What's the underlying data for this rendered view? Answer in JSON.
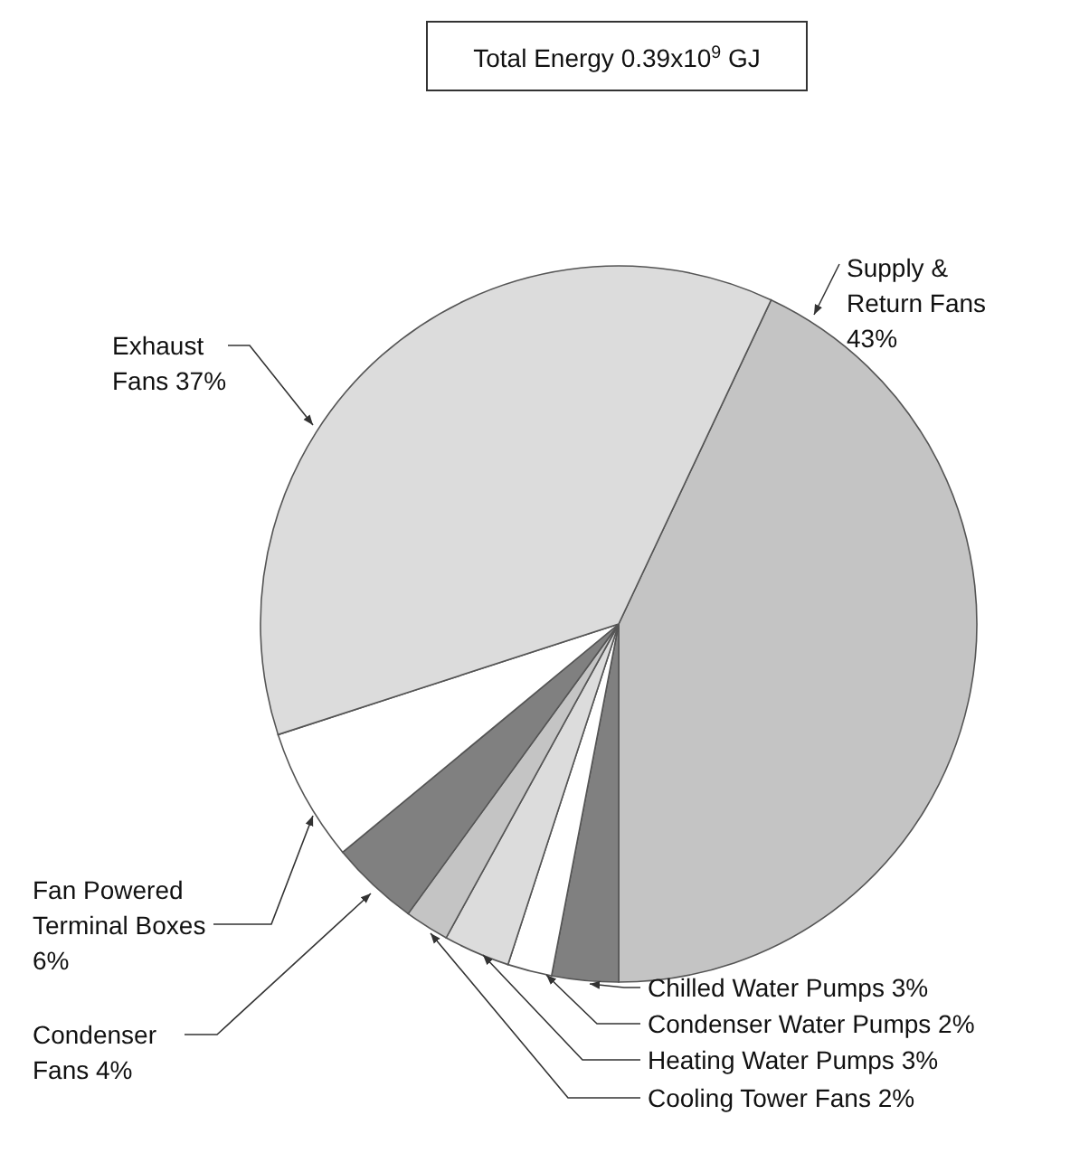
{
  "chart_data": {
    "type": "pie",
    "title": "Total Energy 0.39x10$^{9}$ GJ",
    "categories": [
      "Supply & Return Fans",
      "Chilled Water Pumps",
      "Condenser Water Pumps",
      "Heating Water Pumps",
      "Cooling Tower Fans",
      "Condenser Fans",
      "Fan Powered Terminal Boxes",
      "Exhaust Fans"
    ],
    "values": [
      43,
      3,
      2,
      3,
      2,
      4,
      6,
      37
    ],
    "value_labels": [
      "43%",
      "3%",
      "2%",
      "3%",
      "2%",
      "4%",
      "6%",
      "37%"
    ],
    "colors": [
      "#c4c4c4",
      "#808080",
      "#ffffff",
      "#dcdcdc",
      "#c4c4c4",
      "#808080",
      "#ffffff",
      "#dcdcdc"
    ]
  }
}
